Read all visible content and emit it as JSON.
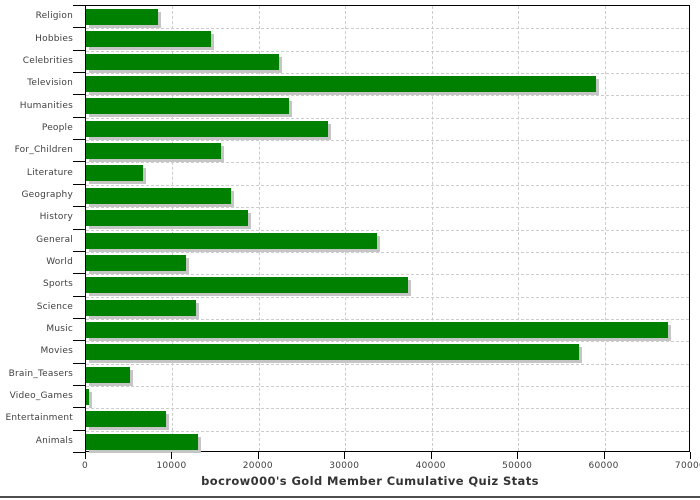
{
  "chart_data": {
    "type": "bar",
    "orientation": "horizontal",
    "title": "bocrow000's Gold Member Cumulative Quiz Stats",
    "categories": [
      "Religion",
      "Hobbies",
      "Celebrities",
      "Television",
      "Humanities",
      "People",
      "For_Children",
      "Literature",
      "Geography",
      "History",
      "General",
      "World",
      "Sports",
      "Science",
      "Music",
      "Movies",
      "Brain_Teasers",
      "Video_Games",
      "Entertainment",
      "Animals"
    ],
    "values": [
      8300,
      14500,
      22300,
      59000,
      23500,
      28000,
      15600,
      6600,
      16800,
      18700,
      33700,
      11600,
      37300,
      12700,
      67300,
      57000,
      5100,
      300,
      9200,
      13000
    ],
    "xlabel": "",
    "ylabel": "",
    "xlim": [
      0,
      70000
    ],
    "x_ticks": [
      0,
      10000,
      20000,
      30000,
      40000,
      50000,
      60000,
      70000
    ],
    "grid": "dashed vertical lines at x ticks; dashed horizontal lines at category boundaries",
    "legend": "none",
    "colors": {
      "bar": "#008000",
      "bar_shadow": "#c5c5c5",
      "gridline": "#cccccc",
      "axis_frame": "#000000",
      "tick_label": "#404040",
      "title": "#333333",
      "bottom_rule": "#4d4d4d"
    }
  }
}
